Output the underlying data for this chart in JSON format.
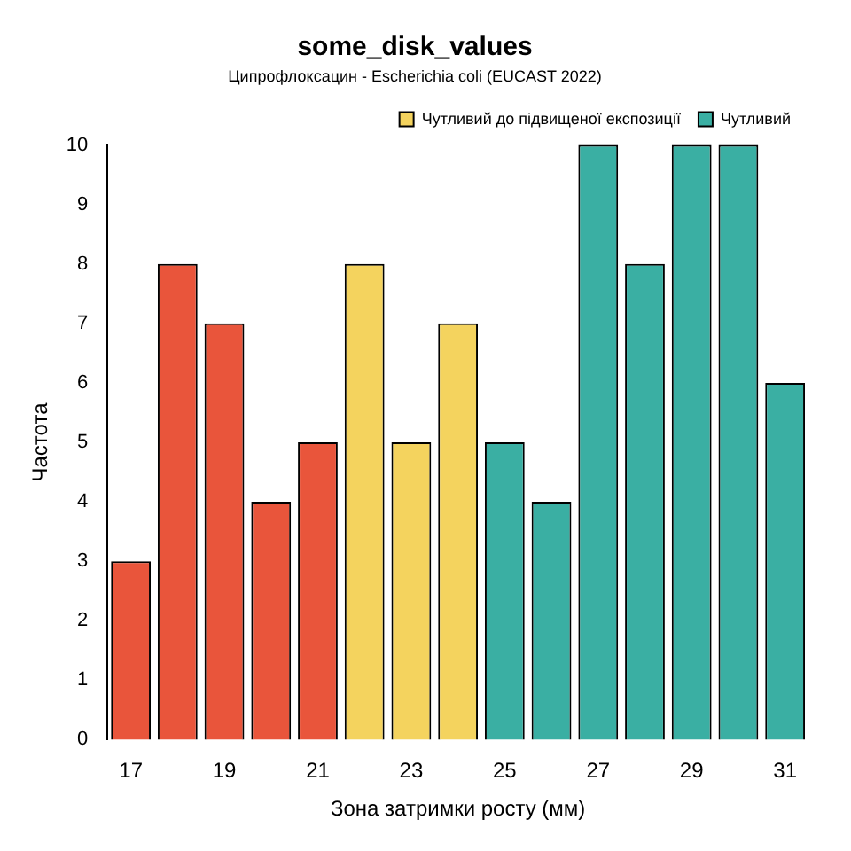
{
  "chart_data": {
    "type": "bar",
    "title": "some_disk_values",
    "subtitle": "Ципрофлоксацин - Escherichia coli (EUCAST 2022)",
    "xlabel": "Зона затримки росту (мм)",
    "ylabel": "Частота",
    "categories": [
      "17",
      null,
      "19",
      null,
      "21",
      null,
      "23",
      null,
      "25",
      null,
      "27",
      null,
      "29",
      null,
      "31"
    ],
    "series": [
      {
        "color": "#e9553b",
        "values": [
          3,
          8,
          7,
          4,
          5,
          null,
          null,
          null,
          null,
          null,
          null,
          null,
          null,
          null,
          null
        ]
      },
      {
        "name": "Чутливий до підвищеної експозиції",
        "color": "#f4d35e",
        "values": [
          null,
          null,
          null,
          null,
          null,
          8,
          5,
          7,
          null,
          null,
          null,
          null,
          null,
          null,
          null
        ]
      },
      {
        "name": "Чутливий",
        "color": "#3aafa3",
        "values": [
          null,
          null,
          null,
          null,
          null,
          null,
          null,
          null,
          5,
          4,
          10,
          8,
          10,
          10,
          6
        ]
      }
    ],
    "ylim": [
      0,
      10
    ],
    "yticks": [
      0,
      1,
      2,
      3,
      4,
      5,
      6,
      7,
      8,
      9,
      10
    ],
    "grid": false,
    "legend": "top right"
  }
}
